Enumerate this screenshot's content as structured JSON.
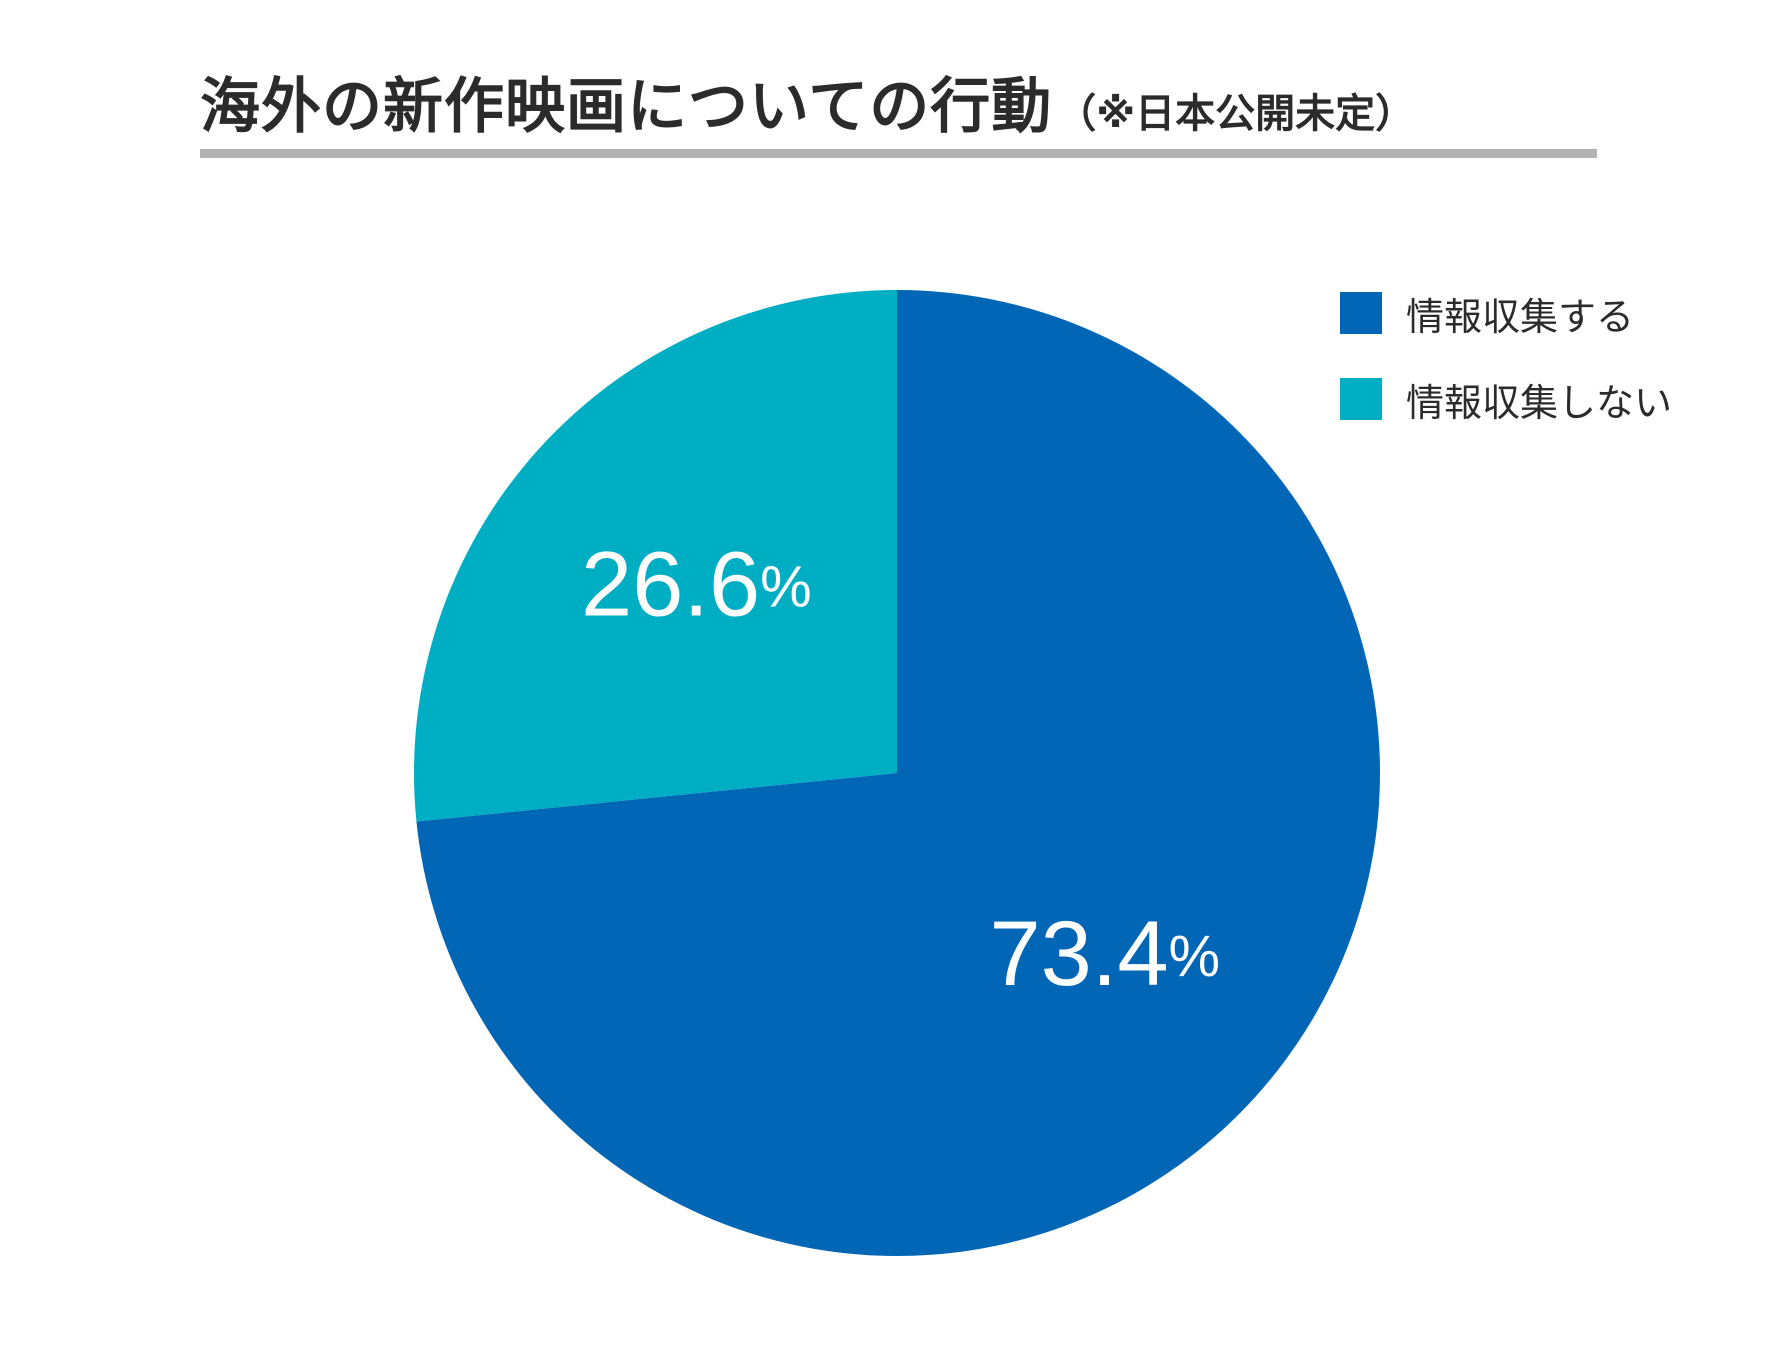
{
  "chart_data": {
    "type": "pie",
    "title": "海外の新作映画についての行動",
    "subtitle": "（※日本公開未定）",
    "slices": [
      {
        "label": "情報収集する",
        "value": 73.4,
        "display": "73.4",
        "unit": "%",
        "color": "#0066b5"
      },
      {
        "label": "情報収集しない",
        "value": 26.6,
        "display": "26.6",
        "unit": "%",
        "color": "#00aec3"
      }
    ],
    "start_angle_deg": 0,
    "direction": "clockwise",
    "legend_position": "top-right"
  },
  "colors": {
    "title_text": "#2b2b2b",
    "title_rule": "#b3b3b3",
    "label_text": "#ffffff"
  }
}
